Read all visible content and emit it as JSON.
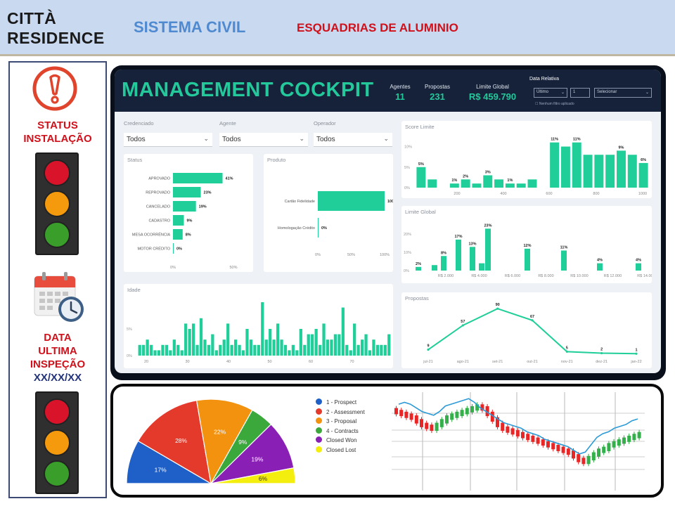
{
  "header": {
    "brand_line1": "CITTÀ",
    "brand_line2": "RESIDENCE",
    "system": "SISTEMA CIVIL",
    "subtitle": "ESQUADRIAS DE ALUMINIO"
  },
  "left_panel": {
    "status_label_1": "STATUS",
    "status_label_2": "INSTALAÇÃO",
    "date_label_1": "DATA",
    "date_label_2": "ULTIMA",
    "date_label_3": "INSPEÇÃO",
    "date_value": "XX/XX/XX",
    "icons": [
      "warning-icon",
      "calendar-clock-icon"
    ],
    "lamp_colors": [
      "#d9142a",
      "#f59a0c",
      "#3a9f2a"
    ]
  },
  "cockpit": {
    "title": "MANAGEMENT COCKPIT",
    "kpis": [
      {
        "label": "Agentes",
        "value": "11"
      },
      {
        "label": "Propostas",
        "value": "231"
      },
      {
        "label": "Limite Global",
        "value": "R$ 459.790"
      }
    ],
    "date_filter": {
      "label": "Data Relativa",
      "unit": "Último",
      "count": "1",
      "period": "Selecionar",
      "note": "Nenhum filtro aplicado"
    },
    "filters": [
      {
        "label": "Credenciado",
        "value": "Todos"
      },
      {
        "label": "Agente",
        "value": "Todos"
      },
      {
        "label": "Operador",
        "value": "Todos"
      }
    ],
    "accent": "#1fce98"
  },
  "chart_data": [
    {
      "type": "bar",
      "title": "Status",
      "orientation": "horizontal",
      "categories": [
        "APROVADO",
        "REPROVADO",
        "CANCELADO",
        "CADASTRO",
        "MESA OCORRÊNCIA",
        "MOTOR CRÉDITO"
      ],
      "values": [
        41,
        23,
        19,
        9,
        8,
        0
      ],
      "labels": [
        "41%",
        "23%",
        "19%",
        "9%",
        "8%",
        "0%"
      ],
      "xticks": [
        "0%",
        "50%"
      ],
      "xlim": [
        0,
        50
      ]
    },
    {
      "type": "bar",
      "title": "Produto",
      "orientation": "horizontal",
      "categories": [
        "Cartão Fidelidade",
        "Homologação Crédito"
      ],
      "values": [
        100,
        0
      ],
      "labels": [
        "100%",
        "0%"
      ],
      "xticks": [
        "0%",
        "50%",
        "100%"
      ],
      "xlim": [
        0,
        100
      ]
    },
    {
      "type": "bar",
      "title": "Score Limite",
      "values": [
        5,
        2,
        0,
        1,
        2,
        1,
        3,
        2,
        1,
        1,
        2,
        0,
        11,
        10,
        11,
        8,
        8,
        8,
        9,
        8,
        6
      ],
      "labels": [
        "5%",
        "",
        "",
        "1%",
        "2%",
        "",
        "3%",
        "",
        "1%",
        "",
        "",
        "",
        "11%",
        "",
        "11%",
        "",
        "",
        "",
        "9%",
        "",
        "6%"
      ],
      "xticks": [
        "200",
        "400",
        "600",
        "800",
        "1000"
      ],
      "yticks": [
        "0%",
        "5%",
        "10%"
      ],
      "ylim": [
        0,
        13
      ]
    },
    {
      "type": "bar",
      "title": "Limite Global",
      "values": [
        2,
        3,
        8,
        17,
        13,
        4,
        23,
        12,
        11,
        4,
        4
      ],
      "labels": [
        "2%",
        "",
        "8%",
        "17%",
        "13%",
        "",
        "23%",
        "12%",
        "11%",
        "4%",
        "4%"
      ],
      "xticks": [
        "R$ 2.000",
        "R$ 4.000",
        "R$ 6.000",
        "R$ 8.000",
        "R$ 10.000",
        "R$ 12.000",
        "R$ 14.000"
      ],
      "yticks": [
        "0%",
        "10%",
        "20%"
      ],
      "ylim": [
        0,
        27
      ]
    },
    {
      "type": "bar",
      "title": "Idade",
      "values": [
        2,
        2,
        3,
        2,
        1,
        1,
        2,
        2,
        1,
        3,
        2,
        1,
        6,
        5,
        6,
        2,
        7,
        3,
        2,
        4,
        1,
        2,
        3,
        6,
        2,
        3,
        2,
        1,
        5,
        3,
        2,
        2,
        10,
        3,
        5,
        3,
        6,
        3,
        2,
        1,
        2,
        1,
        5,
        2,
        4,
        4,
        5,
        2,
        6,
        3,
        3,
        4,
        4,
        9,
        2,
        1,
        6,
        2,
        3,
        4,
        1,
        3,
        2,
        2,
        2,
        4
      ],
      "xticks": [
        "20",
        "30",
        "40",
        "50",
        "60",
        "70"
      ],
      "yticks": [
        "0%",
        "5%"
      ],
      "ylim": [
        0,
        10
      ]
    },
    {
      "type": "line",
      "title": "Propostas",
      "categories": [
        "jul-21",
        "ago-21",
        "set-21",
        "out-21",
        "nov-21",
        "dez-21",
        "jan-22"
      ],
      "values": [
        9,
        57,
        90,
        67,
        5,
        2,
        1
      ],
      "ylim": [
        0,
        100
      ]
    },
    {
      "type": "pie",
      "subtype": "semicircle",
      "slices": [
        {
          "name": "1 - Prospect",
          "value": 17,
          "label": "17%",
          "color": "#1f5fc8"
        },
        {
          "name": "2 - Assessment",
          "value": 28,
          "label": "28%",
          "color": "#e43a2c"
        },
        {
          "name": "3 - Proposal",
          "value": 22,
          "label": "22%",
          "color": "#f3920f"
        },
        {
          "name": "4 - Contracts",
          "value": 9,
          "label": "9%",
          "color": "#3aa83a"
        },
        {
          "name": "Closed Won",
          "value": 19,
          "label": "19%",
          "color": "#8a1fb5"
        },
        {
          "name": "Closed Lost",
          "value": 6,
          "label": "6%",
          "color": "#f4ee0e"
        }
      ]
    },
    {
      "type": "line",
      "subtype": "candlestick",
      "series": [
        {
          "values": [
            38,
            37,
            36,
            35,
            33,
            31,
            30,
            29,
            31,
            33,
            35,
            36,
            37,
            38,
            39,
            40,
            41,
            40,
            37,
            34,
            31,
            29,
            28,
            27,
            26,
            25,
            24,
            23,
            22,
            21,
            20,
            19,
            18,
            17,
            16,
            14,
            12,
            11,
            13,
            15,
            17,
            18,
            20,
            21,
            22,
            23,
            24,
            25,
            26
          ]
        },
        {
          "values": [
            40,
            41,
            40,
            38,
            36,
            35,
            34,
            36,
            39,
            40,
            41,
            42,
            43,
            41,
            38,
            36,
            34,
            32,
            30,
            29,
            28,
            27,
            25,
            24,
            23,
            21,
            20,
            19,
            18,
            17,
            15,
            13,
            14,
            18,
            22,
            24,
            25,
            27,
            28,
            29,
            31,
            32
          ]
        }
      ]
    }
  ]
}
